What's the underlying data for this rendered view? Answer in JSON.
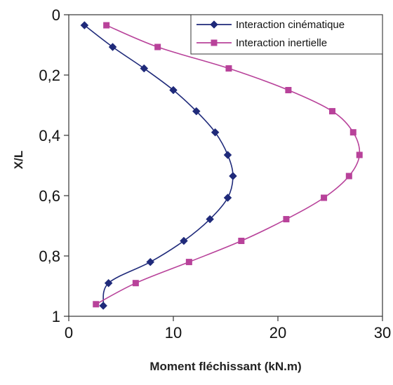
{
  "chart_data": {
    "type": "line",
    "xlabel": "Moment fléchissant (kN.m)",
    "ylabel": "X/L",
    "xlim": [
      0,
      30
    ],
    "ylim": [
      0,
      1
    ],
    "y_inverted": true,
    "x_ticks": [
      "0",
      "10",
      "20",
      "30"
    ],
    "y_ticks": [
      "0",
      "0,2",
      "0,4",
      "0,6",
      "0,8",
      "1"
    ],
    "legend_position": "top-right",
    "grid": false,
    "series": [
      {
        "name": "Interaction cinématique",
        "color": "#1f2a7a",
        "marker": "diamond",
        "x": [
          1.5,
          4.2,
          7.2,
          10.0,
          12.2,
          14.0,
          15.2,
          15.7,
          15.2,
          13.5,
          11.0,
          7.8,
          3.8,
          3.3
        ],
        "y": [
          0.035,
          0.107,
          0.178,
          0.25,
          0.32,
          0.39,
          0.465,
          0.535,
          0.607,
          0.678,
          0.75,
          0.82,
          0.89,
          0.965
        ]
      },
      {
        "name": "Interaction inertielle",
        "color": "#b8429a",
        "marker": "square",
        "x": [
          3.6,
          8.5,
          15.3,
          21.0,
          25.2,
          27.2,
          27.8,
          26.8,
          24.4,
          20.8,
          16.5,
          11.5,
          6.4,
          2.6
        ],
        "y": [
          0.035,
          0.107,
          0.178,
          0.25,
          0.32,
          0.39,
          0.465,
          0.535,
          0.607,
          0.678,
          0.75,
          0.82,
          0.89,
          0.96
        ]
      }
    ]
  }
}
